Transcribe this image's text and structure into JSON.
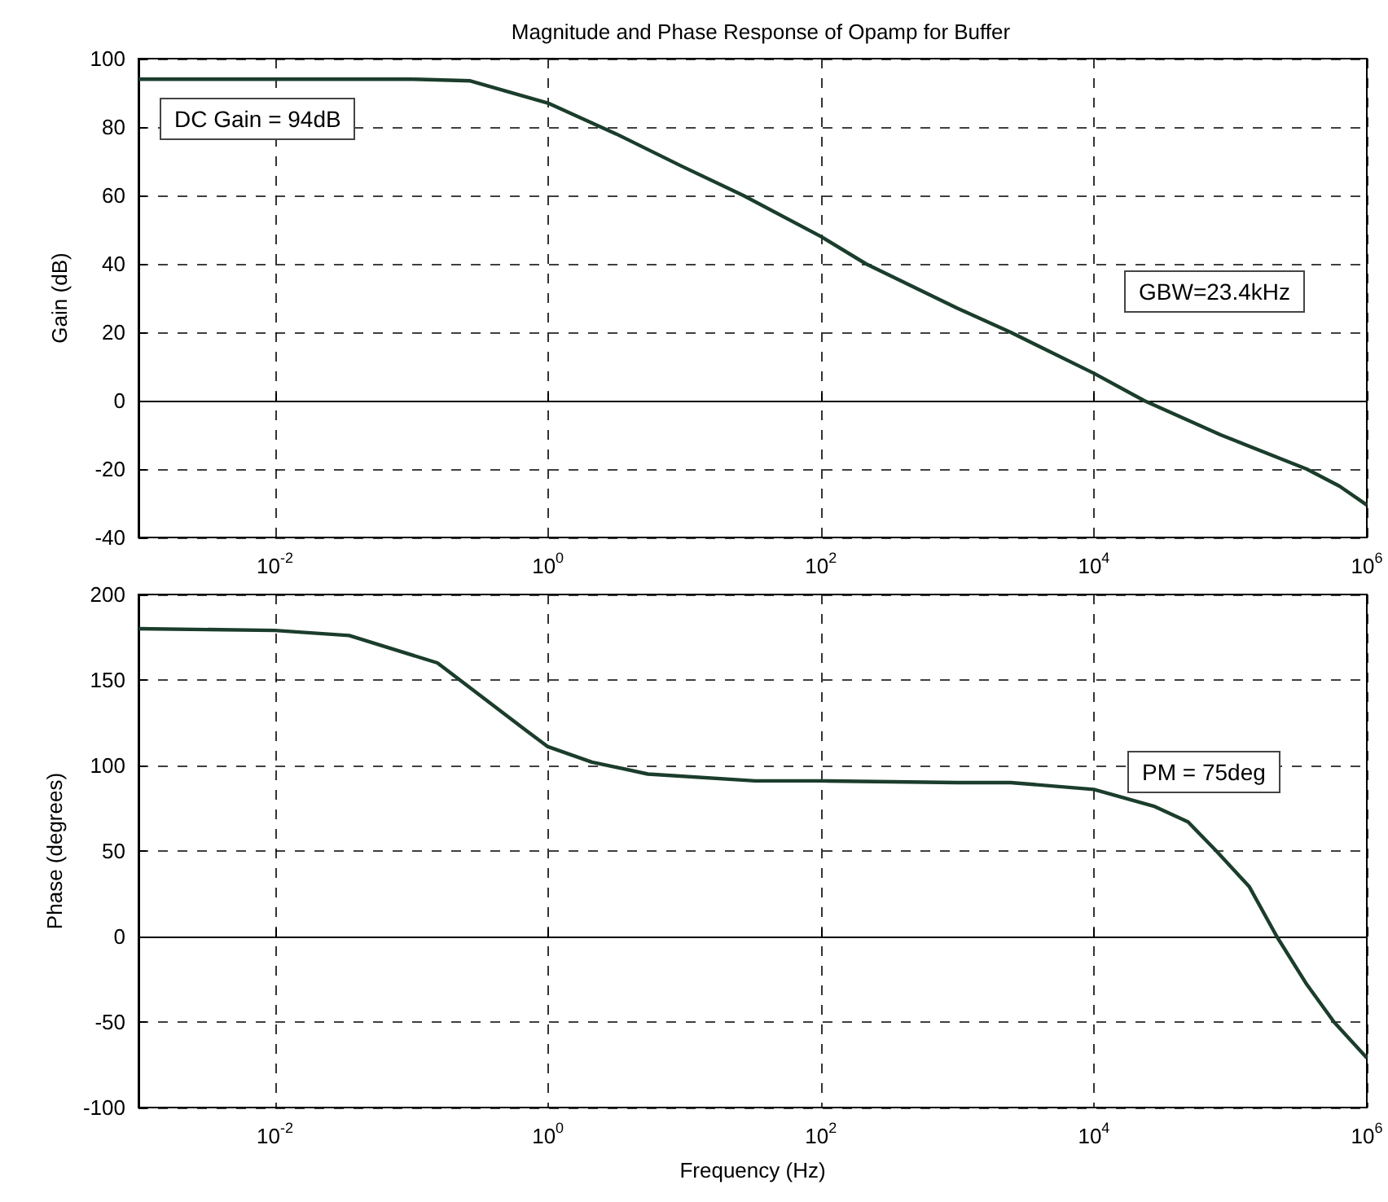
{
  "chart_data": [
    {
      "type": "line",
      "title": "Magnitude and Phase Response of Opamp for Buffer",
      "ylabel": "Gain (dB)",
      "log": "x",
      "grid": true,
      "marker": "none",
      "x": [
        0.001,
        0.1,
        0.27,
        1,
        3.16,
        9.5,
        27,
        100,
        214,
        1000,
        2455,
        10000,
        23400,
        85000,
        363000,
        631000,
        1000000
      ],
      "series": [
        {
          "color": "#1b3d2c",
          "values": [
            94,
            94,
            93.5,
            87,
            78,
            68.6,
            60,
            48,
            40,
            27,
            20,
            8,
            0,
            -10,
            -20,
            -25,
            -30.5
          ]
        }
      ],
      "xlim": [
        0.001,
        1000000
      ],
      "xticks": [
        {
          "value": 0.01,
          "label": "10$^{-2}$"
        },
        {
          "value": 1,
          "label": "10$^{0}$"
        },
        {
          "value": 100,
          "label": "10$^{2}$"
        },
        {
          "value": 10000,
          "label": "10$^{4}$"
        },
        {
          "value": 1000000,
          "label": "10$^{6}$"
        }
      ],
      "ylim": [
        -40,
        100
      ],
      "yticks": [
        -40,
        -20,
        0,
        20,
        40,
        60,
        80,
        100
      ],
      "annotations": [
        "DC Gain = 94dB",
        "GBW=23.4kHz"
      ]
    },
    {
      "type": "line",
      "xlabel": "Frequency (Hz)",
      "ylabel": "Phase (degrees)",
      "log": "x",
      "grid": true,
      "marker": "none",
      "x": [
        0.001,
        0.01,
        0.035,
        0.155,
        0.68,
        1,
        2.1,
        5.4,
        33,
        100,
        1000,
        2455,
        10000,
        28000,
        49000,
        79000,
        138000,
        219000,
        363000,
        575000,
        1000000
      ],
      "series": [
        {
          "color": "#1b3d2c",
          "values": [
            180,
            179,
            176,
            160,
            121,
            111,
            102,
            95,
            91,
            91,
            90,
            90,
            86,
            76,
            67,
            50,
            29,
            0,
            -28,
            -50,
            -71
          ]
        }
      ],
      "xlim": [
        0.001,
        1000000
      ],
      "xticks": [
        {
          "value": 0.01,
          "label": "10$^{-2}$"
        },
        {
          "value": 1,
          "label": "10$^{0}$"
        },
        {
          "value": 100,
          "label": "10$^{2}$"
        },
        {
          "value": 10000,
          "label": "10$^{4}$"
        },
        {
          "value": 1000000,
          "label": "10$^{6}$"
        }
      ],
      "ylim": [
        -100,
        200
      ],
      "yticks": [
        -100,
        -50,
        0,
        50,
        100,
        150,
        200
      ],
      "annotations": [
        "PM = 75deg"
      ]
    }
  ]
}
